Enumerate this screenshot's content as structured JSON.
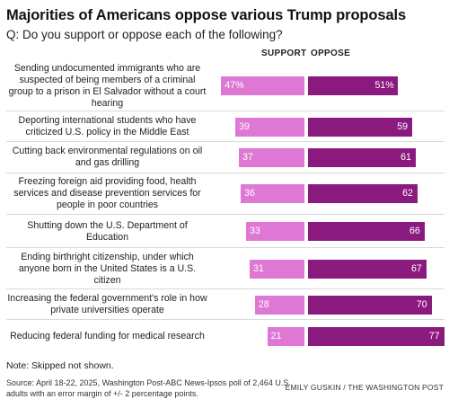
{
  "header": {
    "title": "Majorities of Americans oppose various Trump proposals",
    "question": "Q: Do you support or oppose each of the following?"
  },
  "columns": {
    "support": "SUPPORT",
    "oppose": "OPPOSE"
  },
  "colors": {
    "support": "#de78d4",
    "oppose": "#8b1a7f",
    "separator": "#d9d9d9"
  },
  "chart_data": {
    "type": "bar",
    "categories": [
      "Sending undocumented immigrants who are suspected of being members of a criminal group to a prison in El Salvador without a court hearing",
      "Deporting international students who have criticized U.S. policy in the Middle East",
      "Cutting back environmental regulations on oil and gas drilling",
      "Freezing foreign aid providing food, health services and disease prevention services for people in poor countries",
      "Shutting down the U.S. Department of Education",
      "Ending birthright citizenship, under which anyone born in the United States is a U.S. citizen",
      "Increasing the federal government's role in how private universities operate",
      "Reducing federal funding for medical research"
    ],
    "series": [
      {
        "name": "SUPPORT",
        "values": [
          47,
          39,
          37,
          36,
          33,
          31,
          28,
          21
        ],
        "labels": [
          "47%",
          "39",
          "37",
          "36",
          "33",
          "31",
          "28",
          "21"
        ]
      },
      {
        "name": "OPPOSE",
        "values": [
          51,
          59,
          61,
          62,
          66,
          67,
          70,
          77
        ],
        "labels": [
          "51%",
          "59",
          "61",
          "62",
          "66",
          "67",
          "70",
          "77"
        ]
      }
    ],
    "title": "Majorities of Americans oppose various Trump proposals",
    "xlabel": "",
    "ylabel": ""
  },
  "footer": {
    "note": "Note: Skipped not shown.",
    "source": "Source: April 18-22, 2025, Washington Post-ABC News-Ipsos poll of 2,464 U.S. adults with an error margin of +/- 2 percentage points.",
    "credit": "EMILY GUSKIN / THE WASHINGTON POST"
  }
}
